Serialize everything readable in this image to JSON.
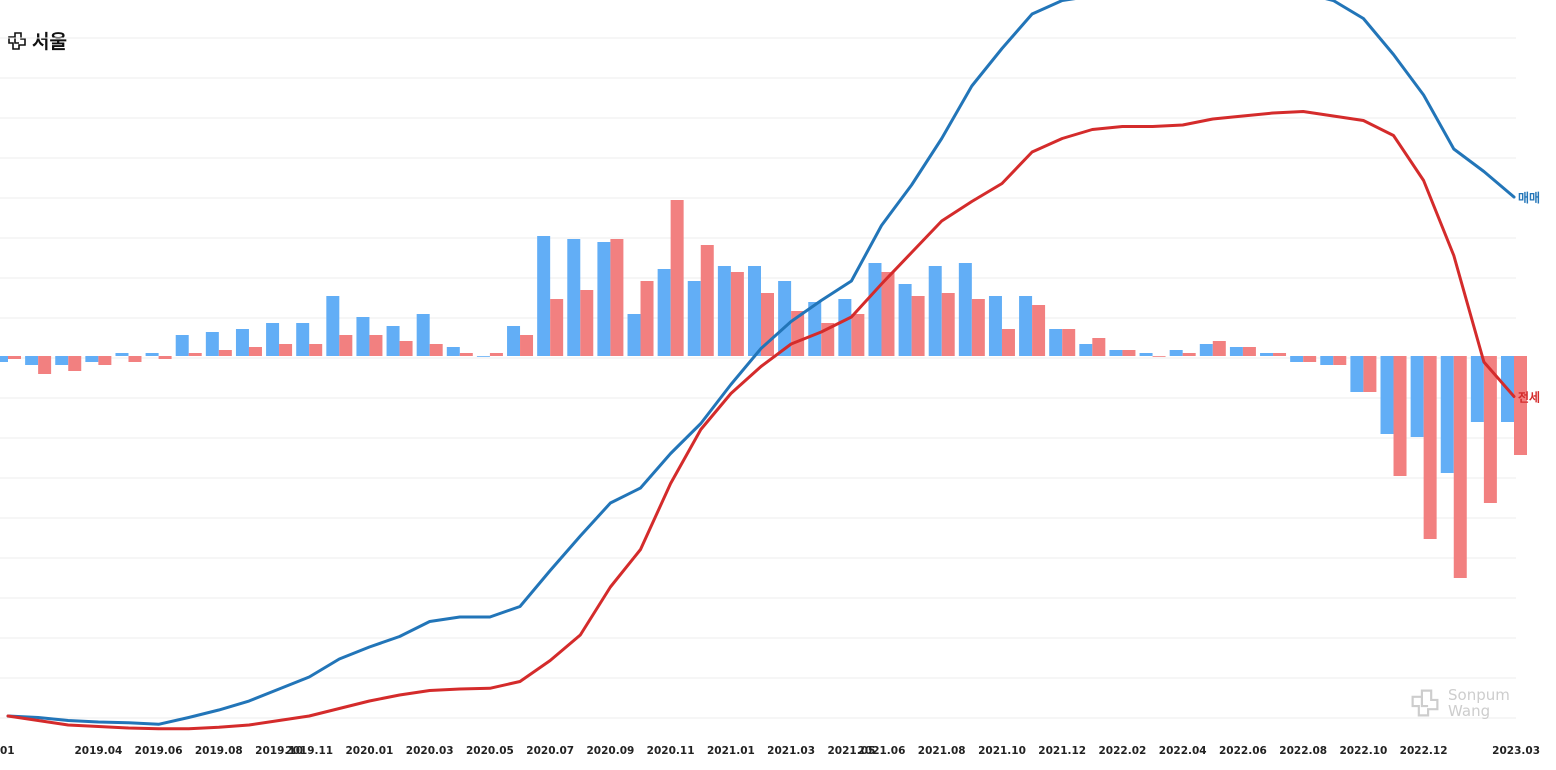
{
  "title": "서울",
  "watermark": "Sonpum Wang",
  "colors": {
    "sale_line": "#2275b8",
    "jeonse_line": "#d42b2b",
    "sale_bar": "#62aef6",
    "jeonse_bar": "#f28080",
    "grid": "#ececec"
  },
  "chart_data": {
    "type": "bar+line",
    "title": "서울",
    "months": [
      "2019.01",
      "2019.02",
      "2019.03",
      "2019.04",
      "2019.05",
      "2019.06",
      "2019.07",
      "2019.08",
      "2019.09",
      "2019.10",
      "2019.11",
      "2019.12",
      "2020.01",
      "2020.02",
      "2020.03",
      "2020.04",
      "2020.05",
      "2020.06",
      "2020.07",
      "2020.08",
      "2020.09",
      "2020.10",
      "2020.11",
      "2020.12",
      "2021.01",
      "2021.02",
      "2021.03",
      "2021.04",
      "2021.05",
      "2021.06",
      "2021.07",
      "2021.08",
      "2021.09",
      "2021.10",
      "2021.11",
      "2021.12",
      "2022.01",
      "2022.02",
      "2022.03",
      "2022.04",
      "2022.05",
      "2022.06",
      "2022.07",
      "2022.08",
      "2022.09",
      "2022.10",
      "2022.11",
      "2022.12",
      "2023.01",
      "2023.02",
      "2023.03"
    ],
    "xtick_labels": [
      "2019.04",
      "2019.06",
      "2019.08",
      "2019.10",
      "2019.11",
      "2020.01",
      "2020.03",
      "2020.05",
      "2020.07",
      "2020.09",
      "2020.11",
      "2021.01",
      "2021.03",
      "2021.05",
      "2021.06",
      "2021.08",
      "2021.10",
      "2021.12",
      "2022.02",
      "2022.04",
      "2022.06",
      "2022.08",
      "2022.10",
      "2022.12",
      "2023.03"
    ],
    "xtick_partial_first": "01",
    "bar_series": [
      {
        "name": "매매",
        "values": [
          -0.02,
          -0.03,
          -0.03,
          -0.02,
          0.01,
          0.01,
          0.07,
          0.08,
          0.09,
          0.11,
          0.11,
          0.2,
          0.13,
          0.1,
          0.14,
          0.03,
          0.0,
          0.1,
          0.4,
          0.39,
          0.38,
          0.14,
          0.29,
          0.25,
          0.3,
          0.3,
          0.25,
          0.18,
          0.19,
          0.31,
          0.24,
          0.3,
          0.31,
          0.2,
          0.2,
          0.09,
          0.04,
          0.02,
          0.01,
          0.02,
          0.04,
          0.03,
          0.01,
          -0.02,
          -0.03,
          -0.12,
          -0.26,
          -0.27,
          -0.39,
          -0.22,
          -0.22
        ]
      },
      {
        "name": "전세",
        "values": [
          -0.01,
          -0.06,
          -0.05,
          -0.03,
          -0.02,
          -0.01,
          0.01,
          0.02,
          0.03,
          0.04,
          0.04,
          0.07,
          0.07,
          0.05,
          0.04,
          0.01,
          0.01,
          0.07,
          0.19,
          0.22,
          0.39,
          0.25,
          0.52,
          0.37,
          0.28,
          0.21,
          0.15,
          0.11,
          0.14,
          0.28,
          0.2,
          0.21,
          0.19,
          0.09,
          0.17,
          0.09,
          0.06,
          0.02,
          0.0,
          0.01,
          0.05,
          0.03,
          0.01,
          -0.02,
          -0.03,
          -0.12,
          -0.4,
          -0.61,
          -0.74,
          -0.49,
          -0.33
        ]
      }
    ],
    "line_series": [
      {
        "name": "매매",
        "values": [
          0.1,
          0.09,
          0.07,
          0.06,
          0.055,
          0.045,
          0.09,
          0.14,
          0.2,
          0.28,
          0.36,
          0.48,
          0.56,
          0.63,
          0.73,
          0.76,
          0.76,
          0.83,
          1.07,
          1.3,
          1.52,
          1.62,
          1.85,
          2.05,
          2.31,
          2.55,
          2.73,
          2.87,
          3.0,
          3.37,
          3.64,
          3.95,
          4.3,
          4.55,
          4.78,
          4.87,
          4.9,
          4.91,
          4.92,
          4.93,
          4.93,
          4.93,
          4.92,
          4.92,
          4.87,
          4.75,
          4.51,
          4.24,
          3.88,
          3.73,
          3.56
        ]
      },
      {
        "name": "전세",
        "values": [
          0.1,
          0.07,
          0.04,
          0.03,
          0.02,
          0.015,
          0.015,
          0.025,
          0.04,
          0.07,
          0.1,
          0.15,
          0.2,
          0.24,
          0.27,
          0.28,
          0.285,
          0.33,
          0.47,
          0.64,
          0.96,
          1.21,
          1.65,
          2.01,
          2.25,
          2.43,
          2.58,
          2.66,
          2.76,
          2.98,
          3.19,
          3.4,
          3.53,
          3.65,
          3.86,
          3.95,
          4.01,
          4.03,
          4.03,
          4.04,
          4.08,
          4.1,
          4.12,
          4.13,
          4.1,
          4.07,
          3.97,
          3.67,
          3.17,
          2.46,
          2.23
        ]
      }
    ],
    "bar_ylim": [
      -0.9,
      0.9
    ],
    "line_ylim": [
      0,
      5.35
    ],
    "series_end_labels": [
      "매매",
      "전세"
    ],
    "grid": true,
    "legend": "none"
  }
}
